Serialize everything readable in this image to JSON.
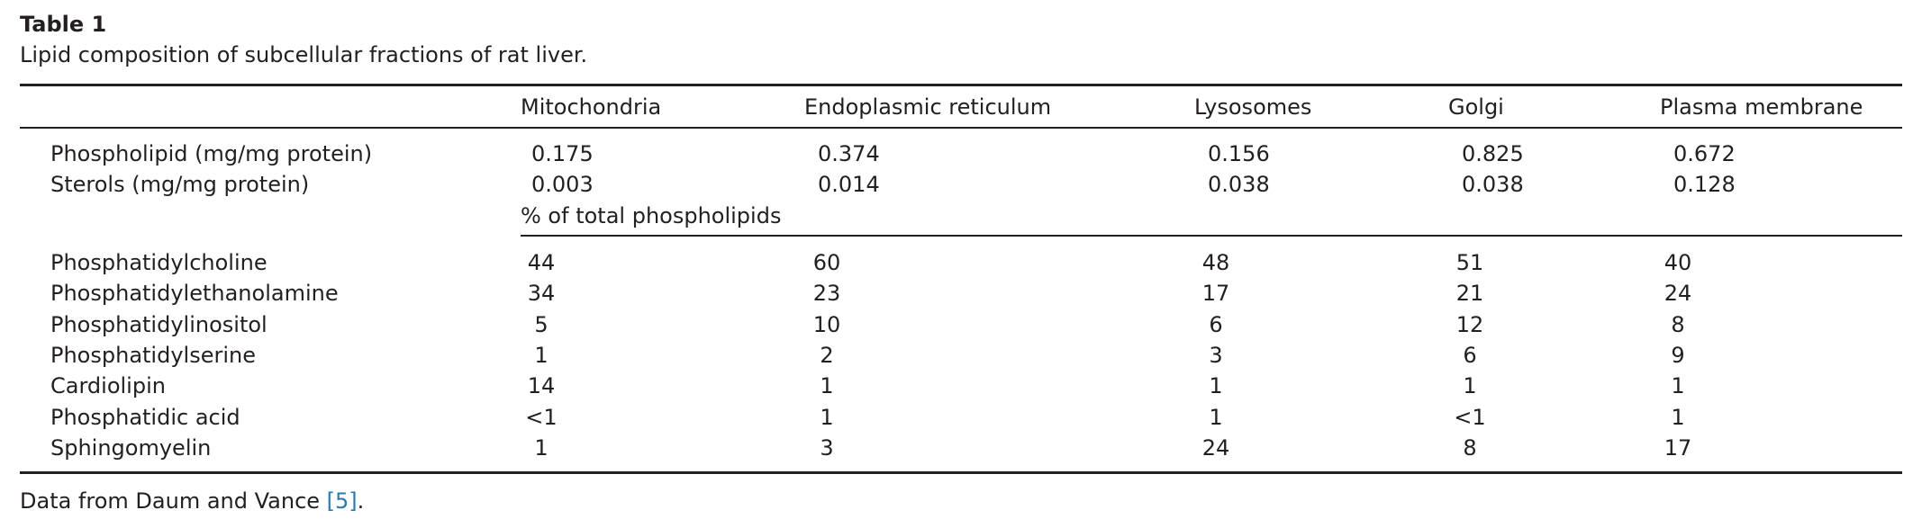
{
  "caption": {
    "title": "Table 1",
    "text": "Lipid composition of subcellular fractions of rat liver."
  },
  "columns": [
    "Mitochondria",
    "Endoplasmic reticulum",
    "Lysosomes",
    "Golgi",
    "Plasma membrane"
  ],
  "upper_rows": [
    {
      "label": "Phospholipid (mg/mg protein)",
      "values": [
        "0.175",
        "0.374",
        "0.156",
        "0.825",
        "0.672"
      ]
    },
    {
      "label": "Sterols (mg/mg protein)",
      "values": [
        "0.003",
        "0.014",
        "0.038",
        "0.038",
        "0.128"
      ]
    }
  ],
  "section_label": "% of total phospholipids",
  "lower_rows": [
    {
      "label": "Phosphatidylcholine",
      "values": [
        "44",
        "60",
        "48",
        "51",
        "40"
      ]
    },
    {
      "label": "Phosphatidylethanolamine",
      "values": [
        "34",
        "23",
        "17",
        "21",
        "24"
      ]
    },
    {
      "label": "Phosphatidylinositol",
      "values": [
        "5",
        "10",
        "6",
        "12",
        "8"
      ]
    },
    {
      "label": "Phosphatidylserine",
      "values": [
        "1",
        "2",
        "3",
        "6",
        "9"
      ]
    },
    {
      "label": "Cardiolipin",
      "values": [
        "14",
        "1",
        "1",
        "1",
        "1"
      ]
    },
    {
      "label": "Phosphatidic acid",
      "values": [
        "<1",
        "1",
        "1",
        "<1",
        "1"
      ]
    },
    {
      "label": "Sphingomyelin",
      "values": [
        "1",
        "3",
        "24",
        "8",
        "17"
      ]
    }
  ],
  "footer": {
    "text": "Data from Daum and Vance ",
    "ref": "[5]",
    "end": "."
  }
}
